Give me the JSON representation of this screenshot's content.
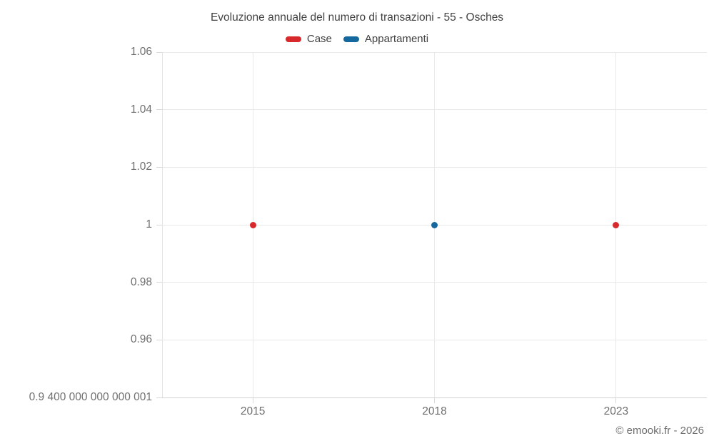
{
  "chart_data": {
    "type": "scatter",
    "title": "Evoluzione annuale del numero di transazioni - 55 - Osches",
    "categories": [
      "2015",
      "2018",
      "2023"
    ],
    "series": [
      {
        "name": "Case",
        "color": "#d7282c",
        "values": [
          1,
          null,
          1
        ]
      },
      {
        "name": "Appartamenti",
        "color": "#15689e",
        "values": [
          null,
          1,
          null
        ]
      }
    ],
    "ylim": [
      0.94,
      1.06
    ],
    "yticks": {
      "values": [
        1.06,
        1.04,
        1.02,
        1,
        0.98,
        0.96,
        0.94
      ],
      "labels": [
        "1.06",
        "1.04",
        "1.02",
        "1",
        "0.98",
        "0.96",
        "0.9 400 000 000 000 001"
      ]
    },
    "xlabel": "",
    "ylabel": "",
    "grid": true,
    "legend_position": "top"
  },
  "footer": {
    "text": "© emooki.fr - 2026"
  }
}
